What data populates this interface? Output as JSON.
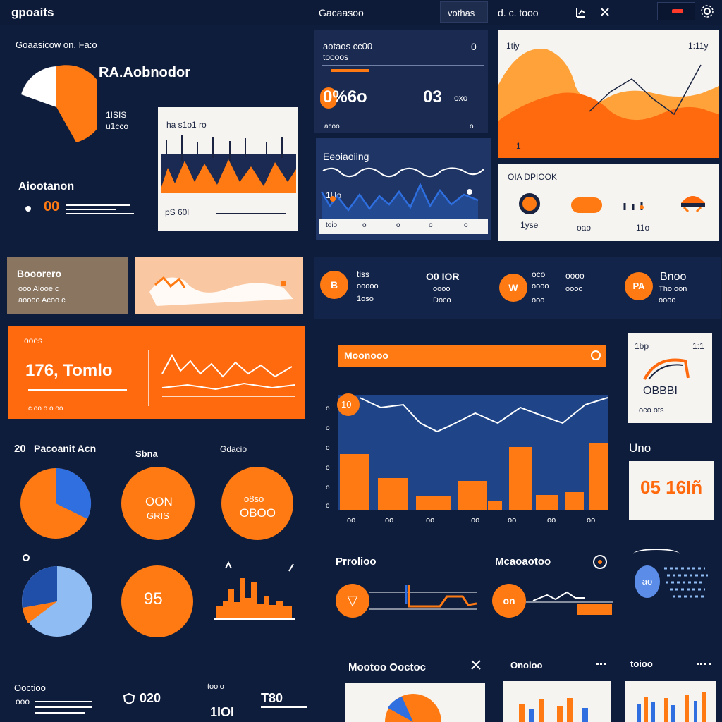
{
  "colors": {
    "background": "#0f1d3d",
    "panel": "#13244b",
    "accent": "#ff7a12",
    "accent_light": "#ffa23a",
    "blue": "#2f6fe0",
    "light_blue": "#8fbcf2",
    "white": "#ffffff"
  },
  "topbar": {
    "logo_text": "gpoaits",
    "breadcrumb": "Gacaasoo",
    "tab_label": "vothas",
    "status_text": "d. c. tooo",
    "icons": [
      "chart-icon",
      "close-icon",
      "notification-icon",
      "settings-icon"
    ]
  },
  "left": {
    "section_title": "Goaasicow on. Fa:o",
    "donut_heading": "RA.Aobnodor",
    "donut_side_text": [
      "1ISIS",
      "u1cco"
    ],
    "stat_label": "Aiootanon",
    "stat_value": "00",
    "mini_chart": {
      "title": "ha s1o1 ro",
      "footer": "pS 60l"
    },
    "badge_card": {
      "title": "Booorero",
      "lines": [
        "ooo Alooe c",
        "aoooo Acoo c"
      ]
    },
    "highlight_card": {
      "kicker": "ooes",
      "big_value": "176, Tomlo",
      "footer": "c oo o o oo"
    },
    "pies_section": {
      "label_left": "Pacoanit Acn",
      "label_mid": "Sbna",
      "label_right": "Gdacio",
      "pie_texts": [
        "OON",
        "GRIS",
        "OBOO",
        "95"
      ],
      "pie_sub": "o8so",
      "number_prefix": "20"
    },
    "bottom": {
      "label": "Ooctioo",
      "sub": "ooo",
      "values": [
        "020",
        "1IOI",
        "T80"
      ],
      "label_b": "toolo"
    }
  },
  "middle": {
    "card_top": {
      "title": "aotaos cc00",
      "sub": "toooos",
      "counter": "0",
      "big_left": "0%6o_",
      "big_right": "03",
      "unit": "oxo",
      "footer_left": "acoo",
      "footer_right": "o"
    },
    "card_wave": {
      "title": "Eeoiaoiing",
      "label": "1Ho",
      "footer_left": "toio",
      "footer_items": [
        "o",
        "o",
        "o",
        "o",
        "o"
      ]
    },
    "kpi_row": [
      {
        "badge": "B",
        "lines": [
          "tiss",
          "ooooo",
          "1oso"
        ]
      },
      {
        "badge": "",
        "lines": [
          "O0 IOR",
          "oooo",
          "Doco"
        ]
      },
      {
        "badge": "W",
        "lines": [
          "oco",
          "oooo",
          "ooo"
        ]
      },
      {
        "badge": "",
        "lines": [
          "oooo",
          "oooo"
        ]
      },
      {
        "badge": "PA",
        "lines": [
          "Bnoo",
          "Tho oon",
          "oooo"
        ]
      }
    ],
    "big_chart": {
      "title": "Moonooo",
      "badge": "10",
      "x_labels": [
        "oo",
        "oo",
        "oo",
        "oo",
        "oo",
        "oo",
        "oo",
        "oo"
      ],
      "y_labels": [
        "o",
        "o",
        "o",
        "o",
        "o",
        "o"
      ]
    },
    "flow_cards": [
      {
        "title": "Prrolioo",
        "badge": "▽"
      },
      {
        "title": "Mcaoaotoo",
        "badge": "on"
      }
    ],
    "bottom_cards": [
      {
        "title": "Mootoo Ooctoc",
        "icon": "close-icon"
      },
      {
        "title": "Onoioo"
      },
      {
        "title": "toioo"
      }
    ]
  },
  "right": {
    "area_card": {
      "label_left": "1tiy",
      "label_right": "1:11y",
      "foot": "1"
    },
    "icons_card": {
      "title": "OIA DPIOOK",
      "labels": [
        "1yse",
        "oao",
        "11o"
      ]
    },
    "mini_card": {
      "label_left": "1bp",
      "label_right": "1:1",
      "value": "OBBBI",
      "foot": "oco ots"
    },
    "value_card": {
      "title": "Uno",
      "value": "05 16Iñ"
    },
    "dots_card": {
      "badge": "ao"
    }
  }
}
